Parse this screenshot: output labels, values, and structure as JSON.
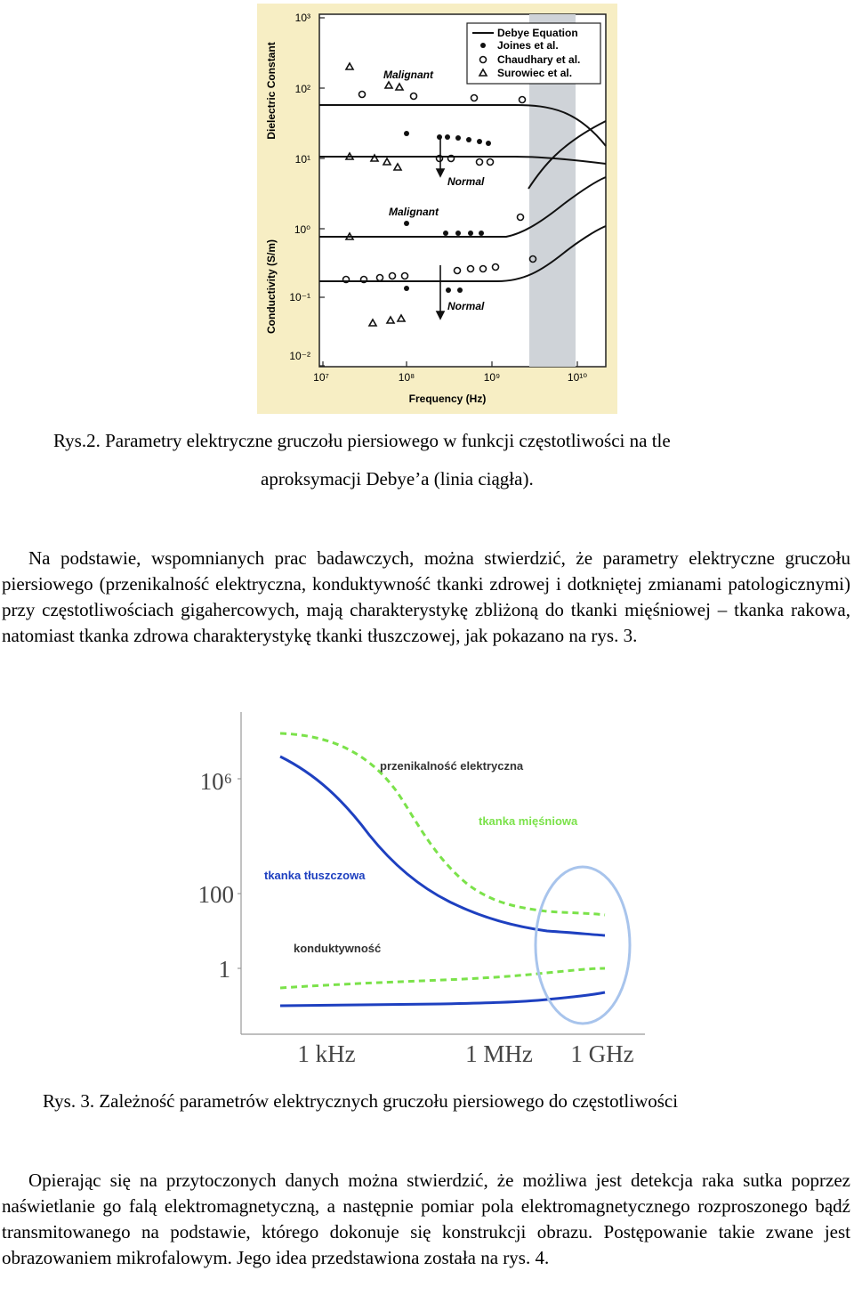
{
  "figure1": {
    "y_top_label": "Dielectric Constant",
    "y_bottom_label": "Conductivity (S/m)",
    "x_label": "Frequency (Hz)",
    "y_ticks": [
      "10⁻²",
      "10⁻¹",
      "10⁰",
      "10¹",
      "10²",
      "10³"
    ],
    "x_ticks": [
      "10⁷",
      "10⁸",
      "10⁹",
      "10¹⁰"
    ],
    "legend": [
      "Debye Equation",
      "Joines et al.",
      "Chaudhary et al.",
      "Surowiec et al."
    ],
    "annotations": [
      "Malignant",
      "Normal",
      "Malignant",
      "Normal"
    ]
  },
  "caption1": {
    "line1": "Rys.2. Parametry elektryczne gruczołu piersiowego w funkcji częstotliwości na tle",
    "line2": "aproksymacji Debye’a (linia ciągła)."
  },
  "paragraph1": "Na podstawie, wspomnianych prac badawczych, można stwierdzić, że parametry elektryczne gruczołu piersiowego (przenikalność elektryczna, konduktywność tkanki zdrowej i dotkniętej zmianami patologicznymi) przy częstotliwościach gigahercowych, mają charakterystykę zbliżoną do tkanki mięśniowej – tkanka rakowa, natomiast tkanka zdrowa charakterystykę tkanki tłuszczowej, jak pokazano na rys. 3.",
  "figure2": {
    "y_ticks": [
      "10⁶",
      "100",
      "1"
    ],
    "x_ticks": [
      "1 kHz",
      "1 MHz",
      "1 GHz"
    ],
    "labels": {
      "permittivity": "przenikalność elektryczna",
      "muscle": "tkanka mięśniowa",
      "fat": "tkanka tłuszczowa",
      "conductivity": "konduktywność"
    },
    "colors": {
      "muscle": "#7be24a",
      "fat": "#1e40c0",
      "ellipse": "#a8c4ec"
    }
  },
  "caption2": "Rys. 3. Zależność parametrów elektrycznych gruczołu piersiowego do częstotliwości",
  "paragraph2": "Opierając się na przytoczonych danych można stwierdzić, że możliwa jest detekcja raka sutka poprzez naświetlanie go falą elektromagnetyczną, a następnie pomiar pola elektromagnetycznego rozproszonego bądź transmitowanego na podstawie, którego dokonuje się konstrukcji obrazu. Postępowanie takie zwane jest obrazowaniem mikrofalowym. Jego idea przedstawiona została na rys. 4."
}
